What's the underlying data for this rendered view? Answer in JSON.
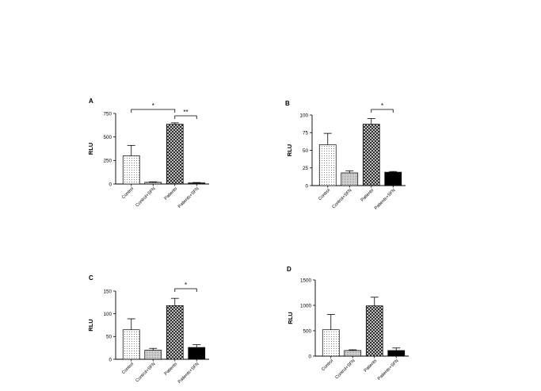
{
  "chart_data": [
    {
      "type": "bar",
      "panel_label": "A",
      "ylabel": "RLU",
      "xlabel": "",
      "categories": [
        "Control",
        "Control+SFN",
        "Patients",
        "Patients+SFN"
      ],
      "values": [
        300,
        18,
        635,
        12
      ],
      "errors": [
        110,
        5,
        15,
        4
      ],
      "patterns": [
        "dots",
        "fine-grid",
        "crosshatch",
        "dark"
      ],
      "ylim": [
        0,
        750
      ],
      "yticks": [
        0,
        250,
        500,
        750
      ],
      "grid": false,
      "significance": [
        {
          "from": 0,
          "to": 2,
          "label": "*"
        },
        {
          "from": 2,
          "to": 3,
          "label": "**"
        }
      ]
    },
    {
      "type": "bar",
      "panel_label": "B",
      "ylabel": "RLU",
      "xlabel": "",
      "categories": [
        "Control",
        "Control+SFN",
        "Patients",
        "Patients+SFN"
      ],
      "values": [
        58,
        18,
        87,
        19
      ],
      "errors": [
        16,
        3,
        8,
        1
      ],
      "patterns": [
        "dots",
        "fine-grid",
        "crosshatch",
        "solid"
      ],
      "ylim": [
        0,
        100
      ],
      "yticks": [
        0,
        25,
        50,
        75,
        100
      ],
      "grid": false,
      "significance": [
        {
          "from": 2,
          "to": 3,
          "label": "*"
        }
      ]
    },
    {
      "type": "bar",
      "panel_label": "C",
      "ylabel": "RLU",
      "xlabel": "",
      "categories": [
        "Control",
        "Control+SFN",
        "Patients",
        "Patients+SFN"
      ],
      "values": [
        65,
        20,
        118,
        26
      ],
      "errors": [
        24,
        4,
        16,
        6
      ],
      "patterns": [
        "dots",
        "fine-grid",
        "crosshatch",
        "solid"
      ],
      "ylim": [
        0,
        150
      ],
      "yticks": [
        0,
        50,
        100,
        150
      ],
      "grid": false,
      "significance": [
        {
          "from": 2,
          "to": 3,
          "label": "*"
        }
      ]
    },
    {
      "type": "bar",
      "panel_label": "D",
      "ylabel": "RLU",
      "xlabel": "",
      "categories": [
        "Control",
        "Control+SFN",
        "Patients",
        "Patients+SFN"
      ],
      "values": [
        520,
        110,
        990,
        110
      ],
      "errors": [
        300,
        15,
        170,
        50
      ],
      "patterns": [
        "dots",
        "fine-grid",
        "crosshatch",
        "solid"
      ],
      "ylim": [
        0,
        1500
      ],
      "yticks": [
        0,
        500,
        1000,
        1500
      ],
      "grid": false,
      "significance": []
    }
  ]
}
